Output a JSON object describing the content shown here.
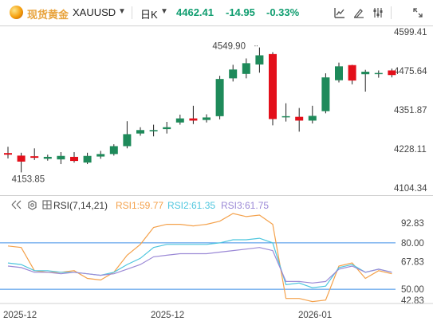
{
  "header": {
    "symbol_name": "现货黄金",
    "symbol_code": "XAUUSD",
    "timeframe": "日K",
    "last_price": "4462.41",
    "change": "-14.95",
    "change_pct": "-0.33%",
    "icons": [
      "indicator-icon",
      "draw-icon",
      "settings-icon",
      "fullscreen-icon"
    ]
  },
  "colors": {
    "up": "#0f9d6f",
    "up_candle": "#1e8a5a",
    "down": "#e30f1a",
    "brand": "#e8a33c",
    "rsi1": "#f4a14b",
    "rsi2": "#4ec6de",
    "rsi3": "#9b89d6",
    "level_line": "#3b8ee8"
  },
  "rsi_header": {
    "name": "RSI(7,14,21)",
    "rsi1": "RSI1:59.77",
    "rsi2": "RSI2:61.35",
    "rsi3": "RSI3:61.75"
  },
  "chart_data": [
    {
      "type": "candlestick",
      "title": "现货黄金 XAUUSD 日K",
      "y_axis_ticks": [
        4599.41,
        4475.64,
        4351.87,
        4228.11,
        4104.34
      ],
      "annotations": {
        "high_label": "4549.90",
        "low_label": "4153.85"
      },
      "x_tick_labels": [
        "2025-12",
        "2025-12",
        "2026-01"
      ],
      "candles": [
        {
          "o": 4215,
          "h": 4235,
          "l": 4198,
          "c": 4210
        },
        {
          "o": 4207,
          "h": 4216,
          "l": 4153.85,
          "c": 4188
        },
        {
          "o": 4205,
          "h": 4230,
          "l": 4193,
          "c": 4200
        },
        {
          "o": 4197,
          "h": 4210,
          "l": 4191,
          "c": 4203
        },
        {
          "o": 4195,
          "h": 4218,
          "l": 4180,
          "c": 4206
        },
        {
          "o": 4203,
          "h": 4218,
          "l": 4185,
          "c": 4190
        },
        {
          "o": 4185,
          "h": 4216,
          "l": 4180,
          "c": 4206
        },
        {
          "o": 4204,
          "h": 4222,
          "l": 4197,
          "c": 4212
        },
        {
          "o": 4212,
          "h": 4243,
          "l": 4207,
          "c": 4237
        },
        {
          "o": 4237,
          "h": 4316,
          "l": 4230,
          "c": 4275
        },
        {
          "o": 4277,
          "h": 4297,
          "l": 4270,
          "c": 4288
        },
        {
          "o": 4284,
          "h": 4305,
          "l": 4268,
          "c": 4288
        },
        {
          "o": 4291,
          "h": 4314,
          "l": 4277,
          "c": 4297
        },
        {
          "o": 4312,
          "h": 4337,
          "l": 4305,
          "c": 4325
        },
        {
          "o": 4325,
          "h": 4365,
          "l": 4307,
          "c": 4318
        },
        {
          "o": 4320,
          "h": 4338,
          "l": 4312,
          "c": 4328
        },
        {
          "o": 4332,
          "h": 4460,
          "l": 4322,
          "c": 4450
        },
        {
          "o": 4452,
          "h": 4495,
          "l": 4442,
          "c": 4480
        },
        {
          "o": 4466,
          "h": 4515,
          "l": 4452,
          "c": 4500
        },
        {
          "o": 4496,
          "h": 4549.9,
          "l": 4470,
          "c": 4525
        },
        {
          "o": 4529,
          "h": 4535,
          "l": 4303,
          "c": 4323
        },
        {
          "o": 4330,
          "h": 4373,
          "l": 4315,
          "c": 4332
        },
        {
          "o": 4330,
          "h": 4358,
          "l": 4283,
          "c": 4318
        },
        {
          "o": 4318,
          "h": 4365,
          "l": 4309,
          "c": 4333
        },
        {
          "o": 4348,
          "h": 4468,
          "l": 4341,
          "c": 4455
        },
        {
          "o": 4446,
          "h": 4502,
          "l": 4439,
          "c": 4490
        },
        {
          "o": 4494,
          "h": 4495,
          "l": 4433,
          "c": 4445
        },
        {
          "o": 4465,
          "h": 4479,
          "l": 4410,
          "c": 4473
        },
        {
          "o": 4466,
          "h": 4477,
          "l": 4454,
          "c": 4469
        },
        {
          "o": 4477,
          "h": 4483,
          "l": 4455,
          "c": 4462.41
        }
      ]
    },
    {
      "type": "line",
      "title": "RSI(7,14,21)",
      "y_axis_ticks": [
        92.83,
        80.0,
        67.83,
        50.0,
        42.83
      ],
      "reference_levels": [
        80,
        50
      ],
      "series": [
        {
          "name": "RSI1",
          "values": [
            78,
            77,
            62,
            61,
            61,
            62,
            57,
            56,
            61,
            72,
            79,
            90,
            92,
            92,
            91,
            92,
            94,
            99,
            97,
            98,
            92,
            44,
            44,
            42,
            43,
            65,
            67,
            57,
            62,
            60
          ]
        },
        {
          "name": "RSI2",
          "values": [
            67,
            66,
            62,
            62,
            61,
            61,
            60,
            59,
            61,
            66,
            70,
            77,
            79,
            79,
            79,
            79,
            80,
            82,
            82,
            83,
            80,
            53,
            54,
            51,
            52,
            64,
            66,
            61,
            63,
            61
          ]
        },
        {
          "name": "RSI3",
          "values": [
            65,
            64,
            61,
            61,
            60,
            61,
            60,
            59,
            60,
            63,
            66,
            71,
            72,
            73,
            73,
            73,
            74,
            75,
            76,
            77,
            75,
            55,
            55,
            54,
            55,
            63,
            65,
            61,
            63,
            61
          ]
        }
      ]
    }
  ]
}
